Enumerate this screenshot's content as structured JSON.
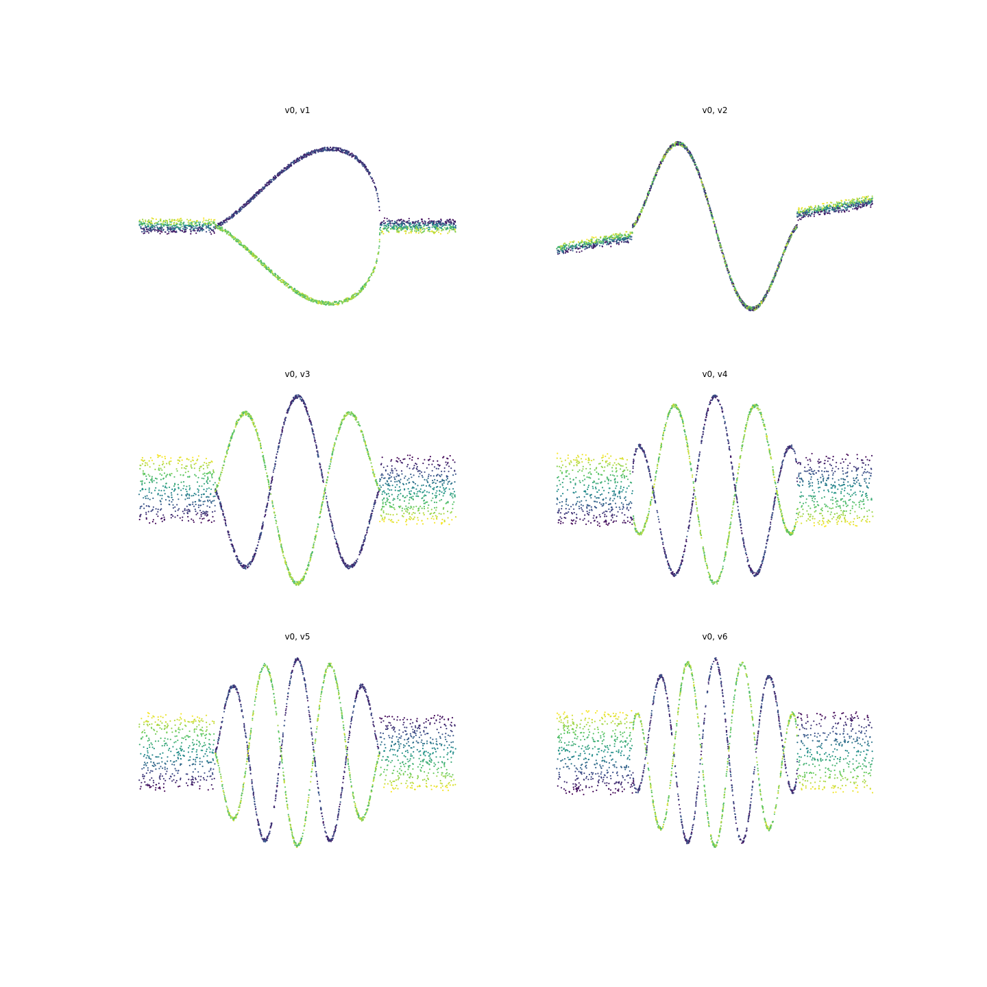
{
  "figure": {
    "background": "#ffffff"
  },
  "colormap": {
    "name": "viridis",
    "stops": [
      "#440154",
      "#3b528b",
      "#21918c",
      "#5ec962",
      "#fde725"
    ]
  },
  "chart_data": [
    {
      "type": "scatter",
      "title": "v0, v1",
      "axes_visible": false,
      "xlim": [
        -5,
        5
      ],
      "ylim": [
        -1.1,
        1.1
      ],
      "pattern": {
        "kind": "symmetric-loop",
        "core_half_width": 2.6,
        "frequency": 0.5,
        "peak_sign": 1
      }
    },
    {
      "type": "scatter",
      "title": "v0, v2",
      "axes_visible": false,
      "xlim": [
        -5,
        5
      ],
      "ylim": [
        -1.1,
        1.1
      ],
      "pattern": {
        "kind": "single-wave",
        "core_half_width": 2.6,
        "frequency": 1,
        "peak_sign": 1
      }
    },
    {
      "type": "scatter",
      "title": "v0, v3",
      "axes_visible": false,
      "xlim": [
        -5,
        5
      ],
      "ylim": [
        -1.1,
        1.1
      ],
      "pattern": {
        "kind": "symmetric-loop",
        "core_half_width": 2.6,
        "frequency": 1.5,
        "peak_sign": 1
      }
    },
    {
      "type": "scatter",
      "title": "v0, v4",
      "axes_visible": false,
      "xlim": [
        -5,
        5
      ],
      "ylim": [
        -1.1,
        1.1
      ],
      "pattern": {
        "kind": "symmetric-loop",
        "core_half_width": 2.6,
        "frequency": 2,
        "peak_sign": 1
      }
    },
    {
      "type": "scatter",
      "title": "v0, v5",
      "axes_visible": false,
      "xlim": [
        -5,
        5
      ],
      "ylim": [
        -1.1,
        1.1
      ],
      "pattern": {
        "kind": "symmetric-loop",
        "core_half_width": 2.6,
        "frequency": 2.5,
        "peak_sign": 1
      }
    },
    {
      "type": "scatter",
      "title": "v0, v6",
      "axes_visible": false,
      "xlim": [
        -5,
        5
      ],
      "ylim": [
        -1.1,
        1.1
      ],
      "pattern": {
        "kind": "symmetric-loop",
        "core_half_width": 2.6,
        "frequency": 3,
        "peak_sign": 1
      }
    }
  ]
}
